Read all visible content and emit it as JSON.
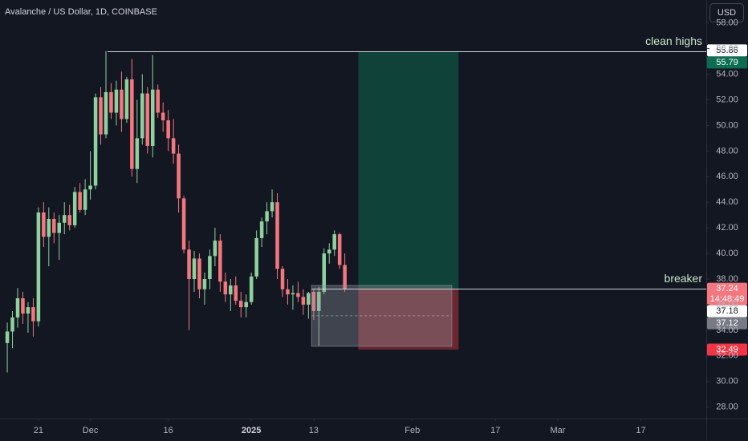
{
  "chart_data": {
    "type": "candlestick",
    "title": "Avalanche / US Dollar, 1D, COINBASE",
    "currency": "USD",
    "up_color": "#8fd19e",
    "down_color": "#f4777f",
    "x": [
      0,
      1,
      2,
      3,
      4,
      5,
      6,
      7,
      8,
      9,
      10,
      11,
      12,
      13,
      14,
      15,
      16,
      17,
      18,
      19,
      20,
      21,
      22,
      23,
      24,
      25,
      26,
      27,
      28,
      29,
      30,
      31,
      32,
      33,
      34,
      35,
      36,
      37,
      38,
      39,
      40,
      41,
      42,
      43,
      44,
      45,
      46,
      47,
      48,
      49,
      50,
      51,
      52,
      53,
      54,
      55,
      56,
      57,
      58,
      59,
      60,
      61,
      62,
      63,
      64,
      65
    ],
    "open": [
      33.0,
      33.9,
      35.0,
      36.5,
      35.3,
      35.8,
      34.7,
      43.2,
      41.3,
      42.7,
      41.6,
      42.4,
      43.0,
      42.2,
      44.8,
      43.4,
      45.0,
      45.3,
      52.2,
      49.3,
      52.6,
      51.0,
      52.8,
      50.5,
      53.6,
      46.6,
      49.0,
      52.5,
      48.4,
      52.8,
      51.0,
      50.4,
      49.0,
      47.8,
      44.3,
      40.3,
      38.0,
      39.6,
      37.2,
      38.0,
      39.8,
      41.0,
      37.8,
      36.8,
      37.5,
      36.3,
      35.8,
      36.2,
      38.2,
      41.2,
      42.5,
      43.3,
      44.0,
      38.8,
      37.2,
      36.8,
      36.9,
      36.6,
      36.0,
      37.0,
      35.5,
      37.0,
      40.0,
      40.3,
      41.5,
      39.1
    ],
    "high": [
      34.6,
      35.5,
      37.3,
      37.0,
      36.2,
      36.5,
      43.6,
      44.0,
      43.6,
      43.2,
      43.0,
      44.0,
      43.8,
      45.2,
      45.5,
      45.8,
      48.0,
      52.5,
      53.0,
      55.8,
      53.3,
      53.5,
      54.2,
      53.8,
      55.2,
      52.0,
      54.0,
      53.0,
      55.5,
      53.2,
      51.8,
      51.2,
      50.5,
      48.5,
      44.5,
      41.0,
      40.2,
      40.0,
      38.5,
      40.3,
      42.0,
      41.5,
      38.5,
      38.0,
      38.2,
      37.0,
      36.8,
      38.5,
      41.8,
      42.8,
      44.0,
      45.0,
      44.7,
      39.0,
      38.0,
      37.5,
      37.8,
      37.2,
      37.0,
      37.2,
      37.4,
      40.4,
      40.8,
      41.8,
      41.6,
      40.0
    ],
    "low": [
      30.7,
      32.6,
      34.2,
      34.5,
      33.8,
      33.5,
      34.3,
      40.5,
      39.0,
      40.8,
      39.5,
      41.5,
      41.8,
      42.0,
      43.2,
      43.0,
      44.2,
      45.0,
      48.5,
      49.0,
      50.5,
      50.0,
      49.5,
      50.2,
      46.0,
      45.5,
      48.5,
      47.8,
      47.5,
      50.6,
      49.5,
      48.0,
      47.0,
      43.2,
      40.0,
      34.0,
      37.0,
      36.5,
      36.0,
      37.2,
      39.0,
      37.0,
      36.2,
      35.5,
      36.0,
      35.0,
      35.0,
      36.0,
      38.0,
      40.5,
      41.5,
      42.8,
      38.0,
      36.6,
      36.0,
      35.6,
      36.2,
      35.2,
      34.9,
      34.8,
      32.8,
      36.8,
      39.2,
      39.8,
      38.8,
      37.0
    ],
    "close": [
      33.9,
      35.0,
      36.5,
      35.3,
      35.8,
      34.7,
      43.2,
      41.3,
      42.7,
      41.6,
      42.4,
      43.0,
      42.2,
      44.8,
      43.4,
      45.0,
      45.3,
      52.2,
      49.3,
      52.6,
      51.0,
      52.8,
      50.5,
      53.6,
      46.6,
      49.0,
      52.5,
      48.4,
      52.8,
      51.0,
      50.4,
      49.0,
      47.8,
      44.3,
      40.3,
      38.0,
      39.6,
      37.2,
      38.0,
      39.8,
      41.0,
      37.8,
      36.8,
      37.5,
      36.3,
      35.8,
      36.2,
      38.2,
      41.2,
      42.5,
      43.3,
      44.0,
      38.8,
      37.2,
      36.8,
      36.9,
      36.6,
      36.0,
      36.9,
      35.5,
      37.0,
      40.0,
      40.3,
      41.5,
      39.1,
      37.24
    ],
    "xlim": [
      -1.4,
      134.6
    ],
    "xticks": [
      {
        "value": 6,
        "label": "21"
      },
      {
        "value": 16,
        "label": "Dec"
      },
      {
        "value": 31,
        "label": "16"
      },
      {
        "value": 47,
        "label": "2025"
      },
      {
        "value": 59,
        "label": "13"
      },
      {
        "value": 78,
        "label": "Feb"
      },
      {
        "value": 94,
        "label": "17"
      },
      {
        "value": 106,
        "label": "Mar"
      },
      {
        "value": 122,
        "label": "17"
      }
    ],
    "ylim": [
      27.1,
      59.8
    ],
    "yticks": [
      {
        "value": 28,
        "label": "28.00"
      },
      {
        "value": 30,
        "label": "30.00"
      },
      {
        "value": 32,
        "label": "32.00"
      },
      {
        "value": 34,
        "label": "34.00"
      },
      {
        "value": 36,
        "label": "36.00"
      },
      {
        "value": 38,
        "label": "38.00"
      },
      {
        "value": 40,
        "label": "40.00"
      },
      {
        "value": 42,
        "label": "42.00"
      },
      {
        "value": 44,
        "label": "44.00"
      },
      {
        "value": 46,
        "label": "46.00"
      },
      {
        "value": 48,
        "label": "48.00"
      },
      {
        "value": 50,
        "label": "50.00"
      },
      {
        "value": 52,
        "label": "52.00"
      },
      {
        "value": 54,
        "label": "54.00"
      },
      {
        "value": 56,
        "label": "56.00"
      },
      {
        "value": 58,
        "label": "58.00"
      }
    ],
    "levels": [
      {
        "label": "clean highs",
        "value": 55.79,
        "from": 19.3
      },
      {
        "label": "breaker",
        "value": 37.24,
        "from": 58.6
      }
    ],
    "zone": {
      "top": 37.5,
      "bottom": 32.75,
      "from": 58.6,
      "to": 85.6,
      "color": "#9598a1"
    },
    "position": {
      "entry": 37.24,
      "target": 55.79,
      "stop": 32.49,
      "from": 67.6,
      "to": 86.9,
      "profit_color": "#0f4a3c",
      "loss_color": "#7a2a34"
    },
    "price_labels": [
      {
        "value": 55.86,
        "bg": "#ffffff",
        "fg": "#131722"
      },
      {
        "value": 55.79,
        "bg": "#0b6e52",
        "fg": "#ffffff"
      },
      {
        "value": 37.24,
        "bg": "#f4777f",
        "fg": "#ffffff",
        "countdown": "14:48:49"
      },
      {
        "value": 37.18,
        "bg": "#ffffff",
        "fg": "#131722"
      },
      {
        "value": 37.12,
        "bg": "#787b86",
        "fg": "#ffffff"
      },
      {
        "value": 32.49,
        "bg": "#f23645",
        "fg": "#ffffff"
      }
    ]
  }
}
